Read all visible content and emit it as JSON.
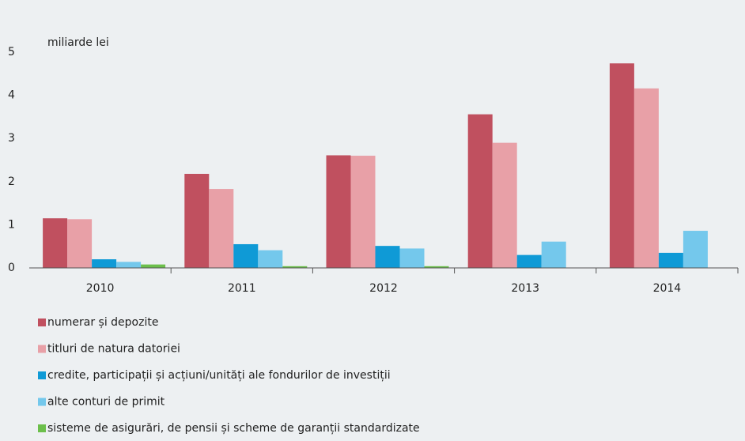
{
  "chart_data": {
    "type": "bar",
    "y_axis_label": "miliarde lei",
    "categories": [
      "2010",
      "2011",
      "2012",
      "2013",
      "2014"
    ],
    "series": [
      {
        "name": "numerar și depozite",
        "color": "#c0505f",
        "values": [
          1.15,
          2.18,
          2.61,
          3.56,
          4.74
        ]
      },
      {
        "name": "titluri de natura datoriei",
        "color": "#e8a0a7",
        "values": [
          1.13,
          1.83,
          2.6,
          2.9,
          4.16
        ]
      },
      {
        "name": "credite, participații și acțiuni/unități ale fondurilor de investiții",
        "color": "#0f9ad6",
        "values": [
          0.2,
          0.55,
          0.51,
          0.3,
          0.35
        ]
      },
      {
        "name": "alte conturi de primit",
        "color": "#74c8ec",
        "values": [
          0.14,
          0.41,
          0.45,
          0.61,
          0.86
        ]
      },
      {
        "name": "sisteme de asigurări, de pensii și scheme de garanții standardizate",
        "color": "#6cbf4b",
        "values": [
          0.08,
          0.04,
          0.04,
          0,
          0
        ]
      }
    ],
    "ylim": [
      0,
      5
    ],
    "yticks": [
      0,
      1,
      2,
      3,
      4,
      5
    ],
    "grid": false,
    "legend": "bottom"
  }
}
